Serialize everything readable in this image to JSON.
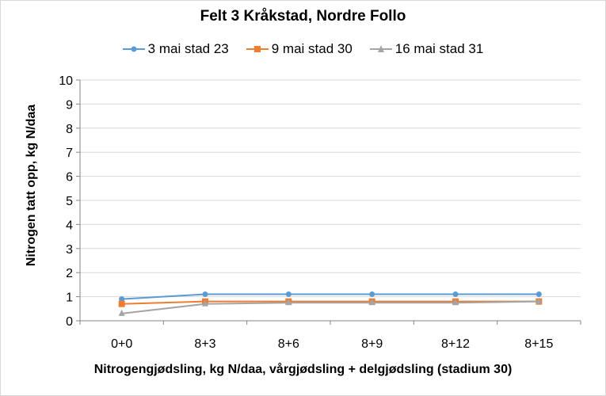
{
  "chart_data": {
    "type": "line",
    "title": "Felt 3 Kråkstad, Nordre Follo",
    "xlabel": "Nitrogengjødsling, kg N/daa, vårgjødsling + delgjødsling (stadium 30)",
    "ylabel": "Nitrogen tatt opp, kg N/daa",
    "categories": [
      "0+0",
      "8+3",
      "8+6",
      "8+9",
      "8+12",
      "8+15"
    ],
    "ylim": [
      0,
      10
    ],
    "yticks": [
      0,
      1,
      2,
      3,
      4,
      5,
      6,
      7,
      8,
      9,
      10
    ],
    "grid": true,
    "legend_position": "top",
    "series": [
      {
        "name": "3 mai stad 23",
        "color": "#5b9bd5",
        "marker": "circle",
        "values": [
          0.9,
          1.1,
          1.1,
          1.1,
          1.1,
          1.1
        ]
      },
      {
        "name": "9 mai stad 30",
        "color": "#ed7d31",
        "marker": "square",
        "values": [
          0.7,
          0.8,
          0.8,
          0.8,
          0.8,
          0.8
        ]
      },
      {
        "name": "16 mai stad 31",
        "color": "#a5a5a5",
        "marker": "triangle",
        "values": [
          0.3,
          0.7,
          0.75,
          0.75,
          0.75,
          0.8
        ]
      }
    ]
  }
}
